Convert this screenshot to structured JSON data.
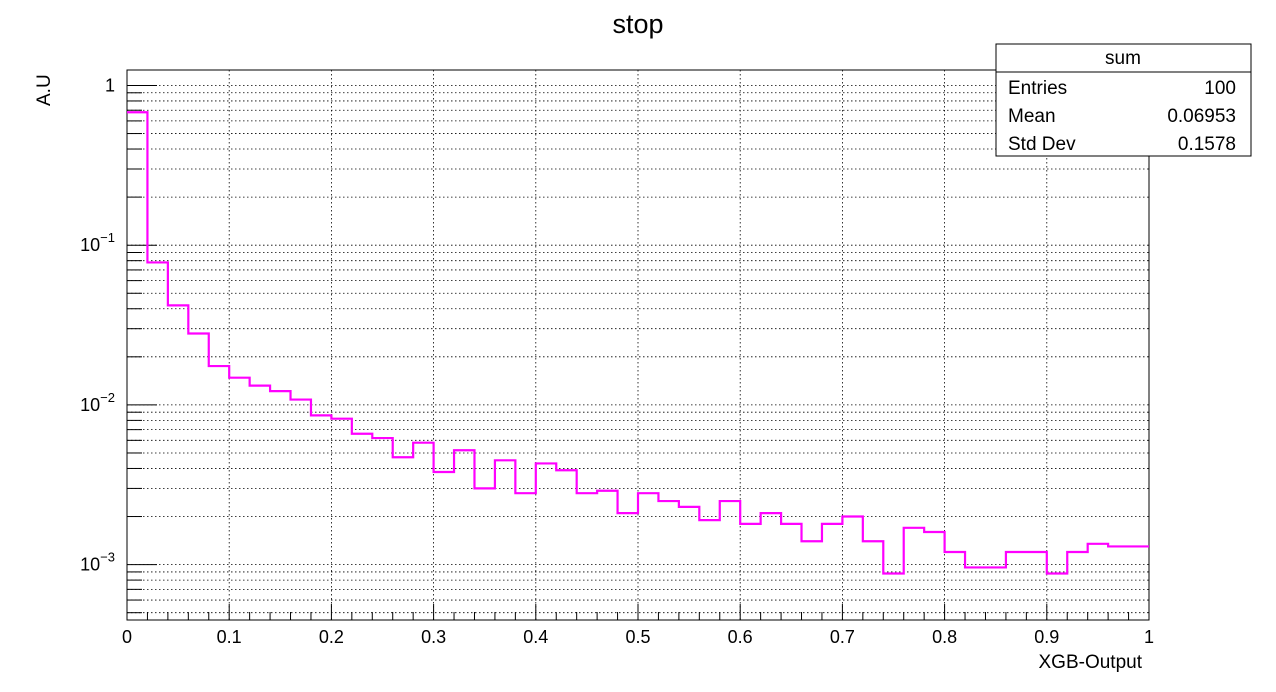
{
  "chart_data": {
    "type": "line",
    "title": "stop",
    "xlabel": "XGB-Output",
    "ylabel": "A.U",
    "xlim": [
      0,
      1
    ],
    "ylim": [
      0.00045,
      1.25
    ],
    "yscale": "log",
    "grid": true,
    "x_ticks": [
      "0",
      "0.1",
      "0.2",
      "0.3",
      "0.4",
      "0.5",
      "0.6",
      "0.7",
      "0.8",
      "0.9",
      "1"
    ],
    "y_ticks": [
      {
        "base": "1",
        "exp": ""
      },
      {
        "base": "10",
        "exp": "−1"
      },
      {
        "base": "10",
        "exp": "−2"
      },
      {
        "base": "10",
        "exp": "−3"
      }
    ],
    "series": [
      {
        "bin_edges": [
          0,
          0.02,
          0.04,
          0.06,
          0.08,
          0.1,
          0.12,
          0.14,
          0.16,
          0.18,
          0.2,
          0.22,
          0.24,
          0.26,
          0.28,
          0.3,
          0.32,
          0.34,
          0.36,
          0.38,
          0.4,
          0.42,
          0.44,
          0.46,
          0.48,
          0.5,
          0.52,
          0.54,
          0.56,
          0.58,
          0.6,
          0.62,
          0.64,
          0.66,
          0.68,
          0.7,
          0.72,
          0.74,
          0.76,
          0.78,
          0.8,
          0.82,
          0.84,
          0.86,
          0.88,
          0.9,
          0.92,
          0.94,
          0.96,
          0.98,
          1.0
        ],
        "values": [
          0.68,
          0.078,
          0.042,
          0.028,
          0.0175,
          0.0148,
          0.0132,
          0.0122,
          0.0108,
          0.0086,
          0.0082,
          0.0066,
          0.0062,
          0.0047,
          0.0058,
          0.0038,
          0.0052,
          0.003,
          0.0045,
          0.0028,
          0.0043,
          0.0039,
          0.0028,
          0.0029,
          0.0021,
          0.0028,
          0.0025,
          0.0023,
          0.0019,
          0.0025,
          0.0018,
          0.0021,
          0.0018,
          0.0014,
          0.0018,
          0.002,
          0.0014,
          0.00088,
          0.0017,
          0.0016,
          0.0012,
          0.00096,
          0.00096,
          0.0012,
          0.0012,
          0.00088,
          0.0012,
          0.00135,
          0.0013,
          0.0013
        ],
        "color": "#ff00ff"
      }
    ]
  },
  "stats_box": {
    "title": "sum",
    "rows": [
      {
        "label": "Entries",
        "value": "100"
      },
      {
        "label": "Mean",
        "value": "0.06953"
      },
      {
        "label": "Std Dev",
        "value": "0.1578"
      }
    ]
  }
}
